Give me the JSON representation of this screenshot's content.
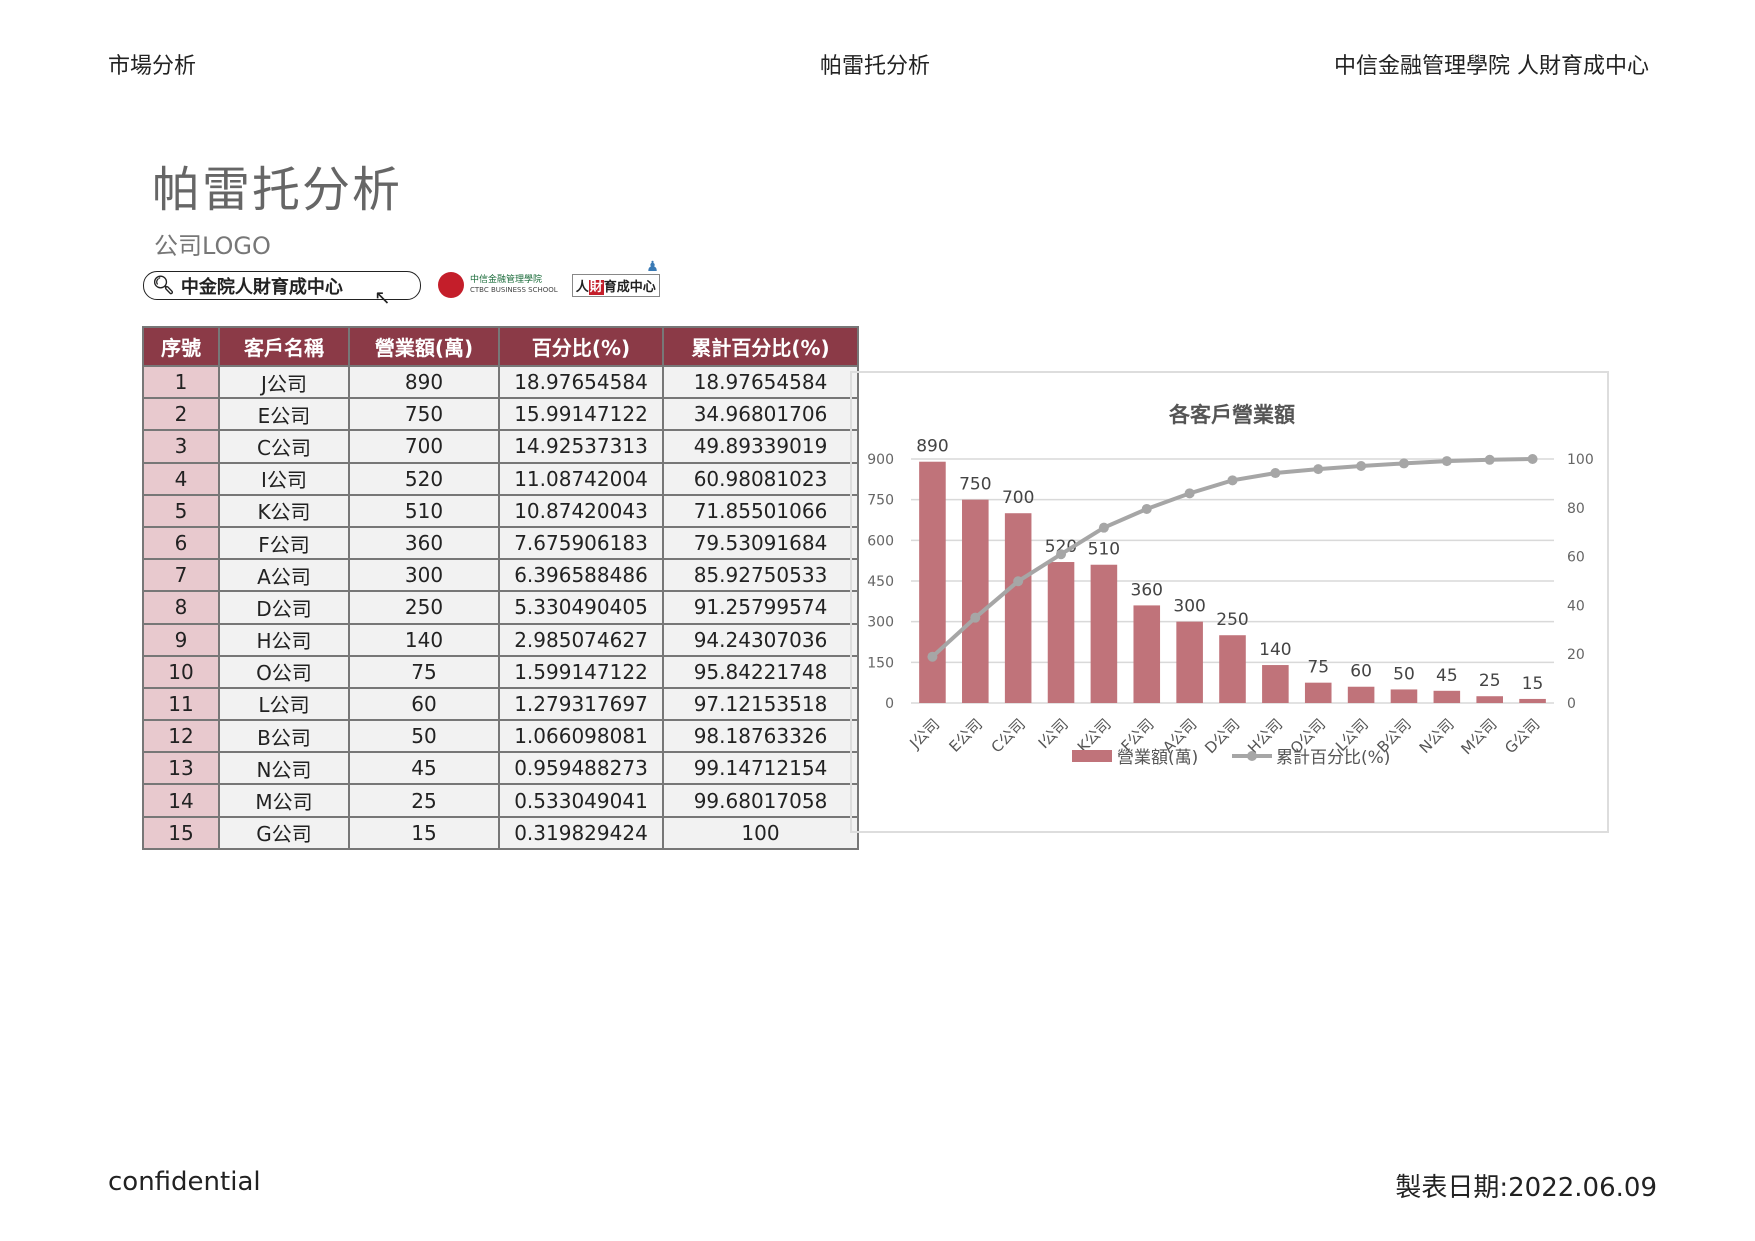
{
  "header": {
    "left": "市場分析",
    "center": "帕雷托分析",
    "right": "中信金融管理學院 人財育成中心"
  },
  "page_title": "帕雷托分析",
  "logo_label": "公司LOGO",
  "search": {
    "icon": "search-icon",
    "value": "中金院人財育成中心"
  },
  "ctbc_logo": {
    "name_zh": "中信金融管理學院",
    "name_en": "CTBC BUSINESS SCHOOL",
    "center": [
      "人",
      "財",
      "育",
      "成",
      "中",
      "心"
    ]
  },
  "table": {
    "headers": [
      "序號",
      "客戶名稱",
      "營業額(萬)",
      "百分比(%)",
      "累計百分比(%)"
    ],
    "rows": [
      [
        "1",
        "J公司",
        "890",
        "18.97654584",
        "18.97654584"
      ],
      [
        "2",
        "E公司",
        "750",
        "15.99147122",
        "34.96801706"
      ],
      [
        "3",
        "C公司",
        "700",
        "14.92537313",
        "49.89339019"
      ],
      [
        "4",
        "I公司",
        "520",
        "11.08742004",
        "60.98081023"
      ],
      [
        "5",
        "K公司",
        "510",
        "10.87420043",
        "71.85501066"
      ],
      [
        "6",
        "F公司",
        "360",
        "7.675906183",
        "79.53091684"
      ],
      [
        "7",
        "A公司",
        "300",
        "6.396588486",
        "85.92750533"
      ],
      [
        "8",
        "D公司",
        "250",
        "5.330490405",
        "91.25799574"
      ],
      [
        "9",
        "H公司",
        "140",
        "2.985074627",
        "94.24307036"
      ],
      [
        "10",
        "O公司",
        "75",
        "1.599147122",
        "95.84221748"
      ],
      [
        "11",
        "L公司",
        "60",
        "1.279317697",
        "97.12153518"
      ],
      [
        "12",
        "B公司",
        "50",
        "1.066098081",
        "98.18763326"
      ],
      [
        "13",
        "N公司",
        "45",
        "0.959488273",
        "99.14712154"
      ],
      [
        "14",
        "M公司",
        "25",
        "0.533049041",
        "99.68017058"
      ],
      [
        "15",
        "G公司",
        "15",
        "0.319829424",
        "100"
      ]
    ]
  },
  "chart_data": {
    "type": "bar+line",
    "title": "各客戶營業額",
    "categories": [
      "J公司",
      "E公司",
      "C公司",
      "I公司",
      "K公司",
      "F公司",
      "A公司",
      "D公司",
      "H公司",
      "O公司",
      "L公司",
      "B公司",
      "N公司",
      "M公司",
      "G公司"
    ],
    "series": [
      {
        "name": "營業額(萬)",
        "type": "bar",
        "axis": "left",
        "color": "#c0737a",
        "values": [
          890,
          750,
          700,
          520,
          510,
          360,
          300,
          250,
          140,
          75,
          60,
          50,
          45,
          25,
          15
        ]
      },
      {
        "name": "累計百分比(%)",
        "type": "line",
        "axis": "right",
        "color": "#a6a6a6",
        "values": [
          18.97654584,
          34.96801706,
          49.89339019,
          60.98081023,
          71.85501066,
          79.53091684,
          85.92750533,
          91.25799574,
          94.24307036,
          95.84221748,
          97.12153518,
          98.18763326,
          99.14712154,
          99.68017058,
          100
        ]
      }
    ],
    "y_left": {
      "range": [
        0,
        900
      ],
      "ticks": [
        "0",
        "150",
        "300",
        "450",
        "600",
        "750",
        "900"
      ]
    },
    "y_right": {
      "range": [
        0,
        100
      ],
      "ticks": [
        "0",
        "20",
        "40",
        "60",
        "80",
        "100"
      ]
    },
    "grid": true,
    "legend": "bottom",
    "data_labels": true
  },
  "footer": {
    "left": "confidential",
    "right": "製表日期:2022.06.09"
  }
}
